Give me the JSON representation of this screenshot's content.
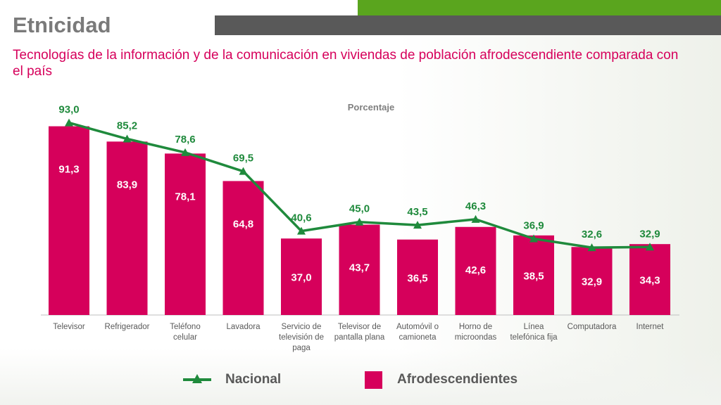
{
  "header": {
    "title": "Etnicidad",
    "subtitle": "Tecnologías de la información y de la comunicación en viviendas de población afrodescendiente comparada con el país"
  },
  "colors": {
    "afro": "#d6005b",
    "nacional": "#1f8a3c",
    "accent_green": "#5aa51e",
    "header_gray": "#595959"
  },
  "chart_data": {
    "type": "bar",
    "ylabel": "Porcentaje",
    "ylim": [
      0,
      100
    ],
    "grid": false,
    "legend_position": "bottom",
    "categories": [
      "Televisor",
      "Refrigerador",
      "Teléfono celular",
      "Lavadora",
      "Servicio de televisión de paga",
      "Televisor de pantalla plana",
      "Automóvil o camioneta",
      "Horno de microondas",
      "Línea telefónica fija",
      "Computadora",
      "Internet"
    ],
    "series": [
      {
        "name": "Afrodescendientes",
        "type": "bar",
        "values": [
          91.3,
          83.9,
          78.1,
          64.8,
          37.0,
          43.7,
          36.5,
          42.6,
          38.5,
          32.9,
          34.3
        ],
        "labels": [
          "91,3",
          "83,9",
          "78,1",
          "64,8",
          "37,0",
          "43,7",
          "36,5",
          "42,6",
          "38,5",
          "32,9",
          "34,3"
        ]
      },
      {
        "name": "Nacional",
        "type": "line",
        "values": [
          93.0,
          85.2,
          78.6,
          69.5,
          40.6,
          45.0,
          43.5,
          46.3,
          36.9,
          32.6,
          32.9
        ],
        "labels": [
          "93,0",
          "85,2",
          "78,6",
          "69,5",
          "40,6",
          "45,0",
          "43,5",
          "46,3",
          "36,9",
          "32,6",
          "32,9"
        ]
      }
    ]
  },
  "legend": {
    "nacional": "Nacional",
    "afro": "Afrodescendientes"
  }
}
